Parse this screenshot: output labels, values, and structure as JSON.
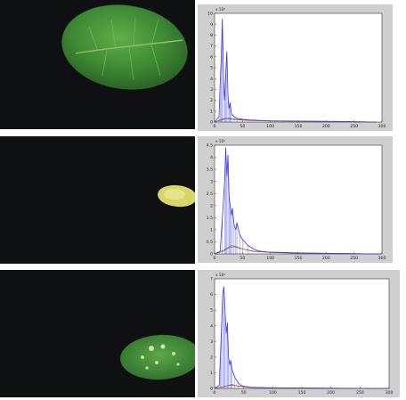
{
  "panels": [
    {
      "photo": {
        "leaf": "healthy-green-leaf"
      },
      "chart_data": {
        "type": "line",
        "xlim": [
          0,
          300
        ],
        "ylim": [
          0,
          10
        ],
        "y_multiplier_label": "x 10⁴",
        "xticks": [
          "0",
          "50",
          "100",
          "150",
          "200",
          "250",
          "300"
        ],
        "yticks": [
          "0",
          "1",
          "2",
          "3",
          "4",
          "5",
          "6",
          "7",
          "8",
          "9",
          "10"
        ],
        "series": [
          {
            "color": "#3a3ae6",
            "x": [
              0,
              8,
              10,
              12,
              14,
              16,
              18,
              20,
              22,
              24,
              26,
              28,
              30,
              35,
              40,
              50,
              60,
              80,
              100,
              150,
              200,
              250,
              290
            ],
            "y": [
              0,
              0.5,
              3.5,
              6.0,
              9.5,
              4.0,
              2.0,
              4.5,
              6.5,
              2.5,
              1.2,
              1.8,
              0.8,
              0.5,
              0.35,
              0.25,
              0.2,
              0.15,
              0.1,
              0.08,
              0.05,
              0.03,
              0
            ]
          },
          {
            "color": "#2e9a2e",
            "x": [
              0,
              20,
              40,
              60,
              100,
              150,
              200,
              250,
              290
            ],
            "y": [
              0,
              0.3,
              0.2,
              0.15,
              0.12,
              0.1,
              0.08,
              0.05,
              0
            ]
          },
          {
            "color": "#d03030",
            "x": [
              0,
              15,
              25,
              40,
              60,
              100,
              150,
              200,
              290
            ],
            "y": [
              0,
              0.3,
              0.35,
              0.25,
              0.15,
              0.1,
              0.06,
              0.03,
              0
            ]
          }
        ]
      }
    },
    {
      "photo": {
        "leaf": "small-yellow-leaf"
      },
      "chart_data": {
        "type": "line",
        "xlim": [
          0,
          300
        ],
        "ylim": [
          0,
          4.5
        ],
        "y_multiplier_label": "x 10⁴",
        "xticks": [
          "0",
          "50",
          "100",
          "150",
          "200",
          "250",
          "300"
        ],
        "yticks": [
          "0",
          "0.5",
          "1",
          "1.5",
          "2",
          "2.5",
          "3",
          "3.5",
          "4",
          "4.5"
        ],
        "series": [
          {
            "color": "#3a3ae6",
            "x": [
              0,
              10,
              14,
              18,
              20,
              22,
              24,
              26,
              28,
              30,
              32,
              35,
              38,
              40,
              45,
              50,
              60,
              70,
              80,
              100,
              150,
              200,
              250,
              300
            ],
            "y": [
              0,
              0.1,
              1.5,
              3.0,
              4.4,
              3.2,
              4.1,
              2.4,
              2.0,
              1.6,
              1.9,
              1.2,
              1.0,
              1.3,
              0.8,
              0.6,
              0.35,
              0.2,
              0.12,
              0.06,
              0.03,
              0.02,
              0.01,
              0
            ]
          },
          {
            "color": "#2e9a2e",
            "x": [
              0,
              20,
              30,
              40,
              50,
              70,
              100,
              150,
              200,
              300
            ],
            "y": [
              0,
              0.2,
              0.35,
              0.3,
              0.2,
              0.12,
              0.08,
              0.05,
              0.03,
              0
            ]
          },
          {
            "color": "#d03030",
            "x": [
              0,
              15,
              25,
              35,
              50,
              70,
              100,
              150,
              200,
              300
            ],
            "y": [
              0,
              0.1,
              0.25,
              0.3,
              0.2,
              0.1,
              0.06,
              0.04,
              0.02,
              0
            ]
          }
        ]
      }
    },
    {
      "photo": {
        "leaf": "spotted-leaf"
      },
      "chart_data": {
        "type": "line",
        "xlim": [
          0,
          300
        ],
        "ylim": [
          0,
          7
        ],
        "y_multiplier_label": "x 10⁴",
        "xticks": [
          "0",
          "50",
          "100",
          "150",
          "200",
          "250",
          "300"
        ],
        "yticks": [
          "0",
          "1",
          "2",
          "3",
          "4",
          "5",
          "6",
          "7"
        ],
        "series": [
          {
            "color": "#3a3ae6",
            "x": [
              0,
              8,
              10,
              12,
              14,
              16,
              18,
              20,
              22,
              24,
              26,
              28,
              30,
              35,
              40,
              45,
              50,
              60,
              80,
              100,
              150,
              200,
              300
            ],
            "y": [
              0,
              0.2,
              2.0,
              4.0,
              6.0,
              6.5,
              5.0,
              3.5,
              4.2,
              2.0,
              1.5,
              1.8,
              1.2,
              0.7,
              0.4,
              0.2,
              0.15,
              0.08,
              0.05,
              0.03,
              0.02,
              0.01,
              0
            ]
          },
          {
            "color": "#2e9a2e",
            "x": [
              0,
              20,
              30,
              40,
              60,
              100,
              150,
              200,
              300
            ],
            "y": [
              0,
              0.15,
              0.25,
              0.15,
              0.08,
              0.05,
              0.03,
              0.02,
              0
            ]
          },
          {
            "color": "#d03030",
            "x": [
              0,
              15,
              25,
              40,
              60,
              100,
              200,
              300
            ],
            "y": [
              0,
              0.1,
              0.2,
              0.15,
              0.06,
              0.03,
              0.01,
              0
            ]
          }
        ]
      }
    }
  ]
}
